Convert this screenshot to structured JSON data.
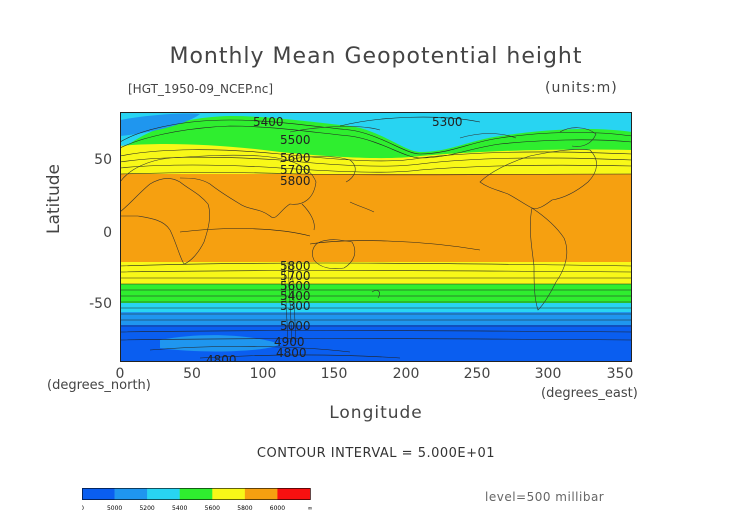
{
  "title": "Monthly Mean Geopotential height",
  "file_label": "[HGT_1950-09_NCEP.nc]",
  "units_label": "(units:m)",
  "y_axis": {
    "label": "Latitude",
    "sub_label": "(degrees_north)",
    "ticks": [
      "50",
      "0",
      "-50"
    ]
  },
  "x_axis": {
    "label": "Longitude",
    "sub_label": "(degrees_east)",
    "ticks": [
      "0",
      "50",
      "100",
      "150",
      "200",
      "250",
      "300",
      "350"
    ]
  },
  "contour_interval": "CONTOUR INTERVAL = 5.000E+01",
  "level": "level=500 millibar",
  "contour_labels": [
    "5400",
    "5500",
    "5300",
    "5600",
    "5700",
    "5800",
    "5800",
    "5700",
    "5600",
    "5400",
    "5300",
    "5000",
    "4900",
    "4800",
    "4800"
  ],
  "colorbar": {
    "colors": [
      "#0a5ef0",
      "#1f96ef",
      "#28d4f2",
      "#2fee2f",
      "#f8f818",
      "#f6a010",
      "#f81010"
    ],
    "labels": [
      "0",
      "5000",
      "5200",
      "5400",
      "5600",
      "5800",
      "6000",
      "∞"
    ]
  },
  "map_colors": {
    "blue": "#0a5ef0",
    "mid_blue": "#1f96ef",
    "cyan": "#28d4f2",
    "green": "#2fee2f",
    "yellow": "#f8f818",
    "orange": "#f6a010"
  },
  "chart_data": {
    "type": "heatmap",
    "title": "Monthly Mean Geopotential height",
    "xlabel": "Longitude",
    "ylabel": "Latitude",
    "xlim": [
      0,
      360
    ],
    "ylim": [
      -90,
      90
    ],
    "zonal_bands": [
      {
        "lat_min": -90,
        "lat_max": -68,
        "range": "<5000"
      },
      {
        "lat_min": -68,
        "lat_max": -60,
        "range": "5000-5200"
      },
      {
        "lat_min": -60,
        "lat_max": -53,
        "range": "5200-5400"
      },
      {
        "lat_min": -53,
        "lat_max": -45,
        "range": "5400-5600"
      },
      {
        "lat_min": -45,
        "lat_max": -30,
        "range": "5600-5800"
      },
      {
        "lat_min": -30,
        "lat_max": 38,
        "range": ">5800"
      },
      {
        "lat_min": 38,
        "lat_max": 48,
        "range": "5600-5800"
      },
      {
        "lat_min": 48,
        "lat_max": 60,
        "range": "5400-5600"
      },
      {
        "lat_min": 60,
        "lat_max": 90,
        "range": "5200-5400"
      }
    ],
    "contour_interval_m": 50,
    "level_mb": 500
  }
}
